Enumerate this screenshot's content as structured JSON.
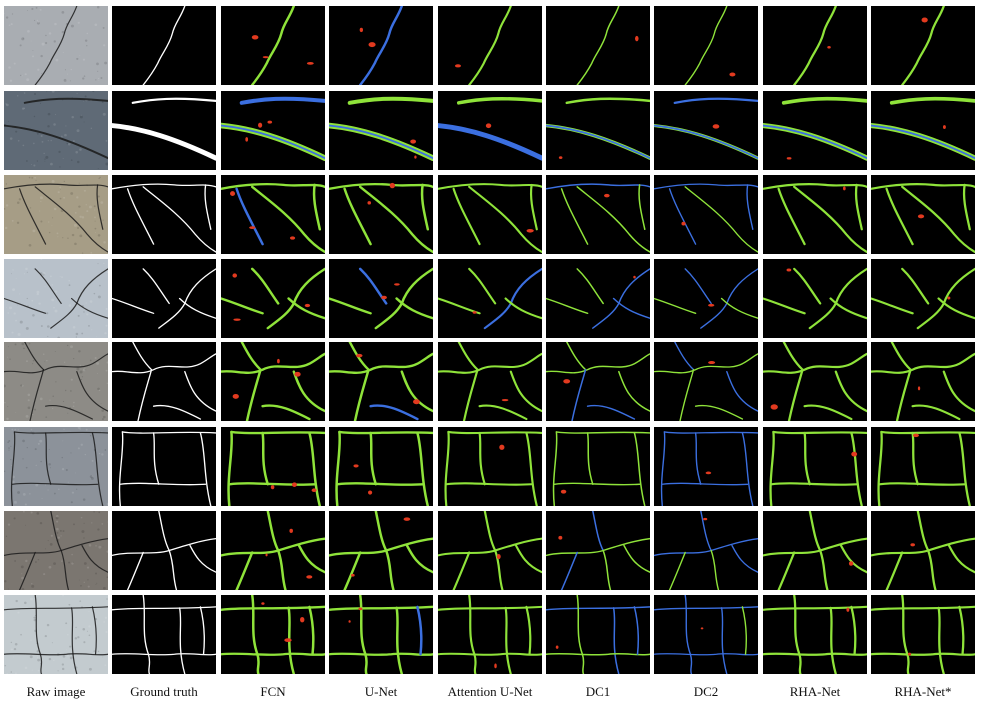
{
  "captions": [
    "Raw image",
    "Ground truth",
    "FCN",
    "U-Net",
    "Attention U-Net",
    "DC1",
    "DC2",
    "RHA-Net",
    "RHA-Net*"
  ],
  "legend_colors": {
    "true_positive": "#8fe33a",
    "false_negative": "#3b6fe0",
    "false_positive": "#e23a1f",
    "ground_truth": "#ffffff",
    "background": "#000000"
  },
  "raw_backgrounds": [
    "#a9adb2",
    "#5f6a76",
    "#a69d86",
    "#b8c1ca",
    "#8d8b86",
    "#8c929a",
    "#7b7670",
    "#c3cbcf"
  ],
  "rows": 8,
  "method_quality": {
    "FCN": {
      "fn": 0.05,
      "fp": 0.25,
      "w": 1.15
    },
    "U-Net": {
      "fn": 0.05,
      "fp": 0.22,
      "w": 1.15
    },
    "Attention U-Net": {
      "fn": 0.05,
      "fp": 0.08,
      "w": 1.0
    },
    "DC1": {
      "fn": 0.35,
      "fp": 0.06,
      "w": 0.7
    },
    "DC2": {
      "fn": 0.6,
      "fp": 0.05,
      "w": 0.65
    },
    "RHA-Net": {
      "fn": 0.04,
      "fp": 0.07,
      "w": 1.05
    },
    "RHA-Net*": {
      "fn": 0.04,
      "fp": 0.12,
      "w": 1.05
    }
  }
}
